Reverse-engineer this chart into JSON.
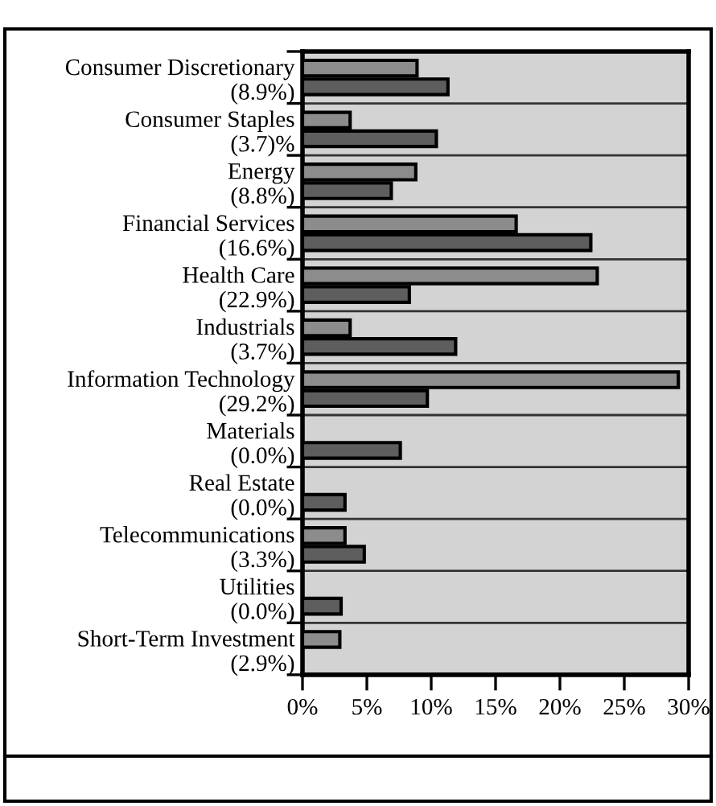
{
  "chart_data": {
    "type": "bar",
    "orientation": "horizontal",
    "categories": [
      "Consumer Discretionary\n(8.9%)",
      "Consumer Staples\n(3.7)%",
      "Energy\n(8.8%)",
      "Financial Services\n(16.6%)",
      "Health Care\n(22.9%)",
      "Industrials\n(3.7%)",
      "Information Technology\n(29.2%)",
      "Materials\n(0.0%)",
      "Real Estate\n(0.0%)",
      "Telecommunications\n(3.3%)",
      "Utilities\n(0.0%)",
      "Short-Term Investment\n(2.9%)"
    ],
    "series": [
      {
        "color": "#8c8c8c",
        "values": [
          8.9,
          3.7,
          8.8,
          16.6,
          22.9,
          3.7,
          29.2,
          0.0,
          0.0,
          3.3,
          0.0,
          2.9
        ]
      },
      {
        "color": "#5e5e5e",
        "values": [
          11.3,
          10.4,
          6.9,
          22.4,
          8.3,
          11.9,
          9.7,
          7.6,
          3.3,
          4.8,
          3.0,
          0.0
        ]
      }
    ],
    "xlim": [
      0,
      30
    ],
    "xticks": [
      {
        "value": 0,
        "label": "0%"
      },
      {
        "value": 5,
        "label": "5%"
      },
      {
        "value": 10,
        "label": "10%"
      },
      {
        "value": 15,
        "label": "15%"
      },
      {
        "value": 20,
        "label": "20%"
      },
      {
        "value": 25,
        "label": "25%"
      },
      {
        "value": 30,
        "label": "30%"
      }
    ],
    "grid": "y"
  }
}
